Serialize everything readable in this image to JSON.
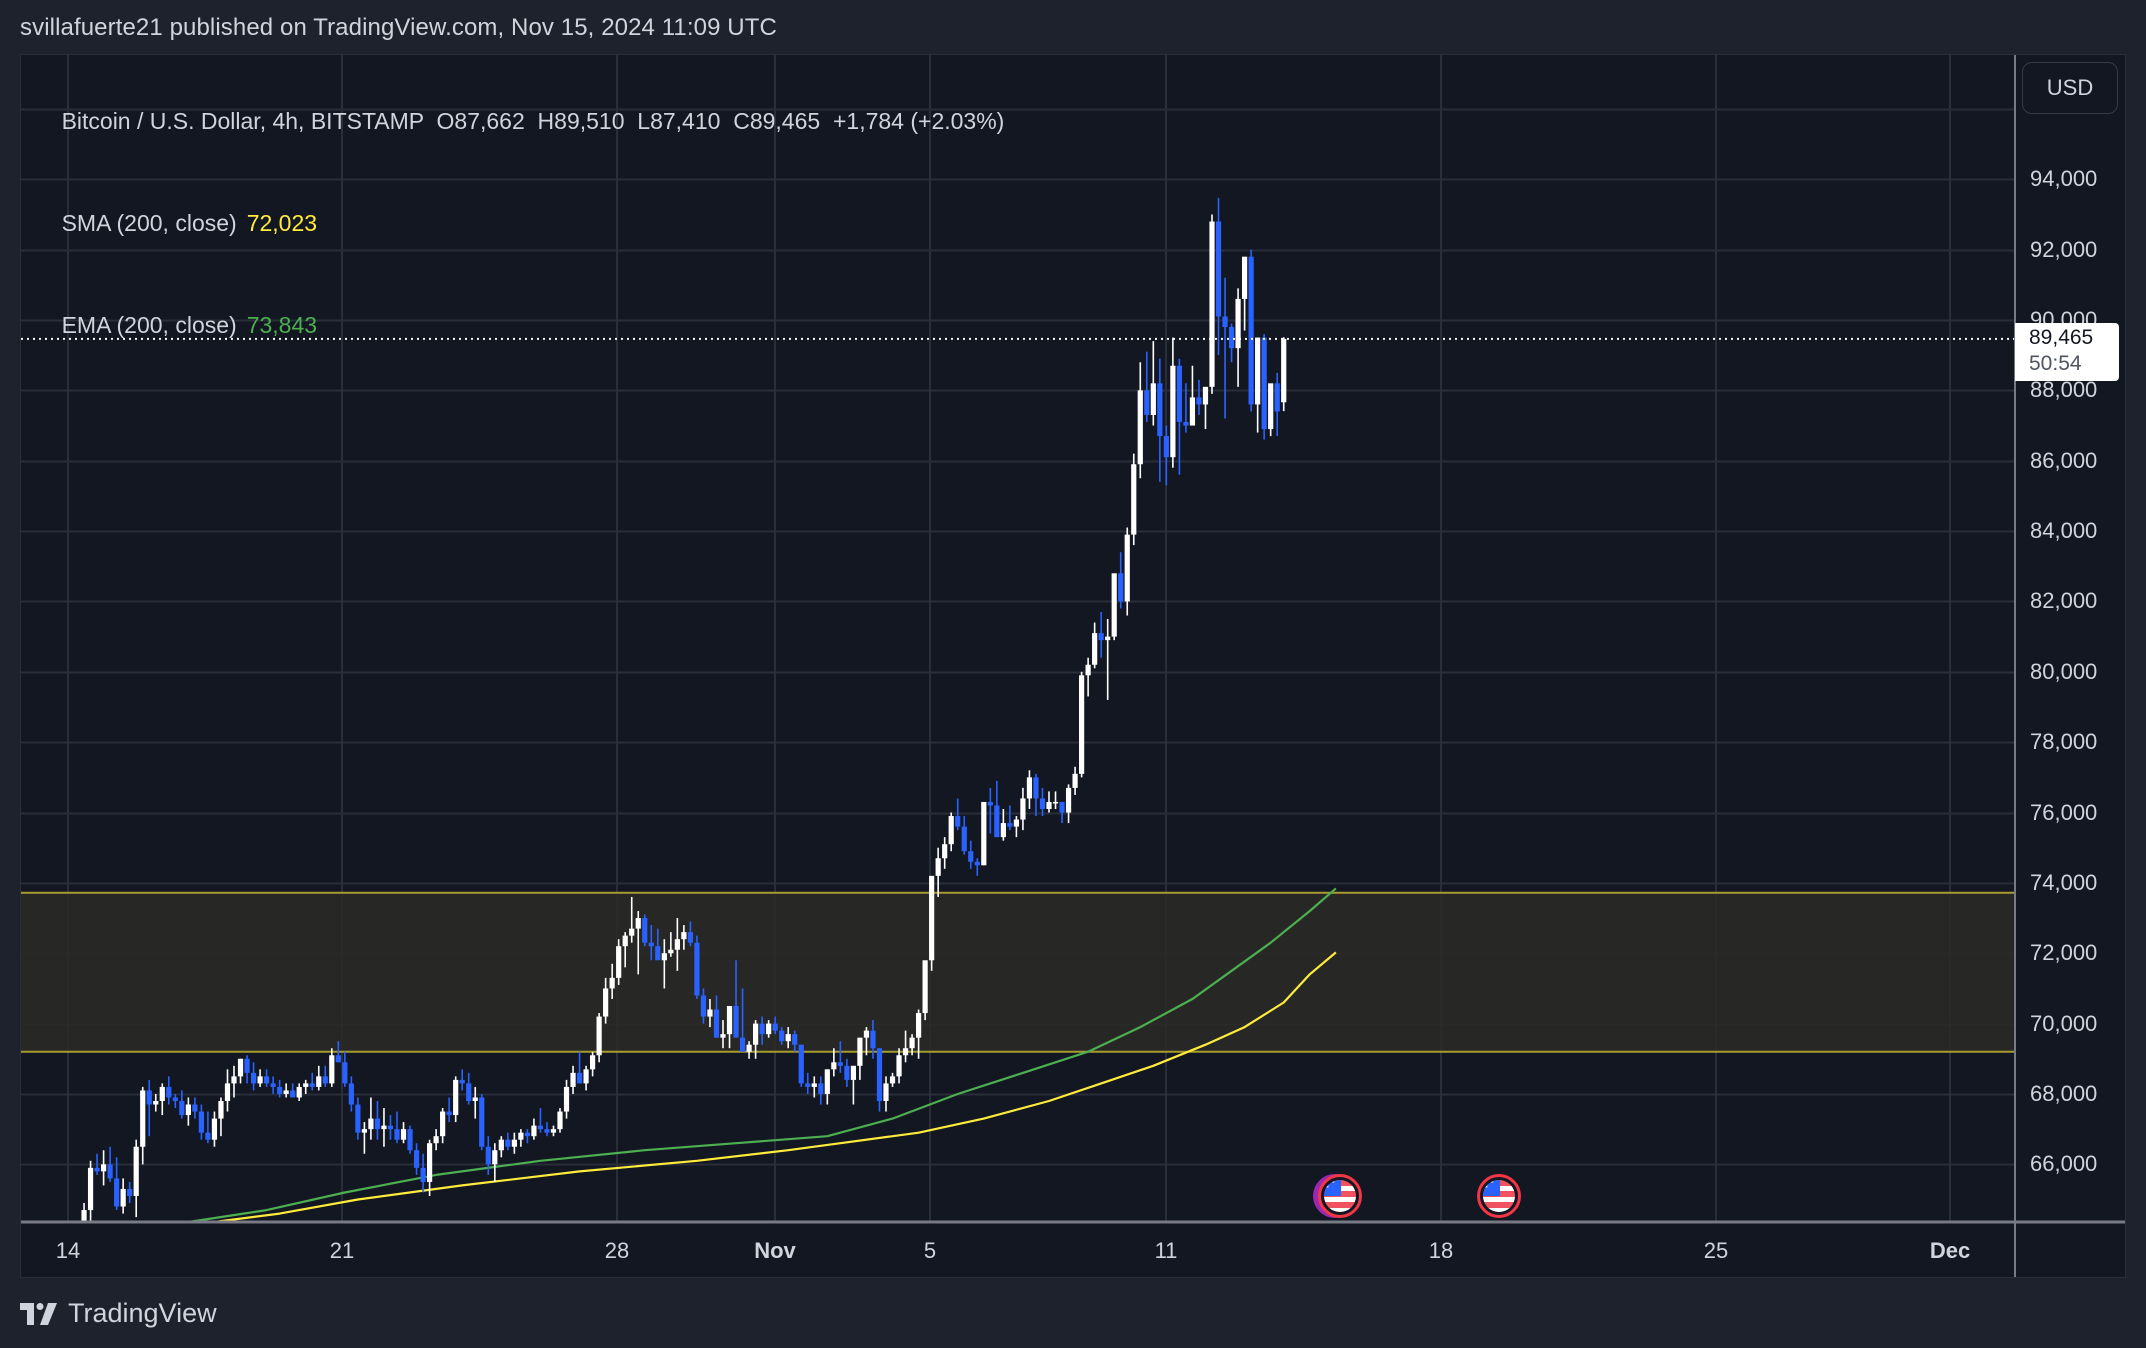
{
  "header": {
    "publisher_line": "svillafuerte21 published on TradingView.com, Nov 15, 2024 11:09 UTC"
  },
  "legend": {
    "symbol": "Bitcoin / U.S. Dollar, 4h, BITSTAMP",
    "open_label": "O87,662",
    "high_label": "H89,510",
    "low_label": "L87,410",
    "close_label": "C89,465",
    "change_label": "+1,784 (+2.03%)",
    "sma_label": "SMA (200, close)",
    "sma_value": "72,023",
    "ema_label": "EMA (200, close)",
    "ema_value": "73,843"
  },
  "price_axis": {
    "currency_button": "USD",
    "labels": [
      "94,000",
      "92,000",
      "90,000",
      "88,000",
      "86,000",
      "84,000",
      "82,000",
      "80,000",
      "78,000",
      "76,000",
      "74,000",
      "72,000",
      "70,000",
      "68,000",
      "66,000"
    ],
    "last_price": "89,465",
    "countdown": "50:54"
  },
  "time_axis": {
    "labels": [
      "14",
      "21",
      "28",
      "Nov",
      "5",
      "11",
      "18",
      "25",
      "Dec"
    ]
  },
  "footer": {
    "brand": "TradingView"
  },
  "colors": {
    "background": "#131722",
    "frame": "#1e222d",
    "grid": "#2a2e39",
    "bull": "#ffffff",
    "bear": "#2962ff",
    "sma": "#ffeb3b",
    "ema": "#4caf50",
    "zone_fill": "#2a2a27",
    "zone_border": "#a89b2e"
  },
  "chart_data": {
    "type": "candlestick",
    "title": "Bitcoin / U.S. Dollar, 4h, BITSTAMP",
    "interval": "4h",
    "xlabel": "",
    "ylabel": "USD",
    "ylim": [
      64230,
      97000
    ],
    "grid": true,
    "x_tick_labels": [
      "14",
      "21",
      "28",
      "Nov",
      "5",
      "11",
      "18",
      "25",
      "Dec"
    ],
    "y_tick_labels": [
      66000,
      68000,
      70000,
      72000,
      74000,
      76000,
      78000,
      80000,
      82000,
      84000,
      86000,
      88000,
      90000,
      92000,
      94000
    ],
    "last_candle": {
      "open": 87662,
      "high": 89510,
      "low": 87410,
      "close": 89465,
      "change": 1784,
      "change_pct": 2.03
    },
    "indicators": [
      {
        "name": "SMA (200, close)",
        "last": 72023,
        "color": "#ffeb3b"
      },
      {
        "name": "EMA (200, close)",
        "last": 73843,
        "color": "#4caf50"
      }
    ],
    "zone": {
      "top": 73720,
      "bottom": 69200,
      "label": "resistance/support band"
    },
    "start": "Oct 14 00:00",
    "candles_ohlc": [
      [
        62800,
        63300,
        62600,
        63200
      ],
      [
        63200,
        64000,
        63100,
        63900
      ],
      [
        63900,
        64900,
        63800,
        64700
      ],
      [
        64700,
        66100,
        64300,
        65900
      ],
      [
        65900,
        66300,
        65700,
        65800
      ],
      [
        65800,
        66400,
        65400,
        66000
      ],
      [
        66000,
        66500,
        65500,
        65600
      ],
      [
        65600,
        66200,
        64700,
        64800
      ],
      [
        64800,
        65600,
        64600,
        65300
      ],
      [
        65300,
        65500,
        64900,
        65100
      ],
      [
        65100,
        66700,
        64500,
        66500
      ],
      [
        66500,
        68200,
        66000,
        68100
      ],
      [
        68100,
        68400,
        66800,
        67700
      ],
      [
        67700,
        68000,
        67500,
        67800
      ],
      [
        67800,
        68300,
        67400,
        68200
      ],
      [
        68200,
        68500,
        67700,
        67900
      ],
      [
        67900,
        68000,
        67600,
        67800
      ],
      [
        67800,
        68100,
        67300,
        67400
      ],
      [
        67400,
        67900,
        67100,
        67700
      ],
      [
        67700,
        67900,
        67300,
        67500
      ],
      [
        67500,
        67700,
        66700,
        66900
      ],
      [
        66900,
        67500,
        66600,
        66700
      ],
      [
        66700,
        67500,
        66500,
        67300
      ],
      [
        67300,
        67900,
        66800,
        67800
      ],
      [
        67800,
        68700,
        67500,
        68300
      ],
      [
        68300,
        68800,
        67900,
        68500
      ],
      [
        68500,
        69000,
        68300,
        69000
      ],
      [
        69000,
        69100,
        68300,
        68600
      ],
      [
        68600,
        68900,
        68100,
        68300
      ],
      [
        68300,
        68700,
        68200,
        68500
      ],
      [
        68500,
        68700,
        68200,
        68300
      ],
      [
        68300,
        68500,
        68000,
        68200
      ],
      [
        68200,
        68400,
        67900,
        68000
      ],
      [
        68000,
        68300,
        67900,
        68100
      ],
      [
        68100,
        68300,
        67900,
        67900
      ],
      [
        67900,
        68300,
        67800,
        68200
      ],
      [
        68200,
        68400,
        68000,
        68300
      ],
      [
        68300,
        68600,
        68100,
        68200
      ],
      [
        68200,
        68800,
        68100,
        68500
      ],
      [
        68500,
        68800,
        68200,
        68300
      ],
      [
        68300,
        69300,
        68200,
        69100
      ],
      [
        69100,
        69500,
        68900,
        68900
      ],
      [
        68900,
        69200,
        68200,
        68300
      ],
      [
        68300,
        68500,
        67500,
        67700
      ],
      [
        67700,
        67900,
        66700,
        66900
      ],
      [
        66900,
        67200,
        66300,
        67000
      ],
      [
        67000,
        67900,
        66700,
        67300
      ],
      [
        67300,
        67800,
        66700,
        67000
      ],
      [
        67000,
        67600,
        66500,
        67100
      ],
      [
        67100,
        67400,
        66700,
        67000
      ],
      [
        67000,
        67500,
        66600,
        66700
      ],
      [
        66700,
        67200,
        66600,
        67000
      ],
      [
        67000,
        67100,
        66300,
        66400
      ],
      [
        66400,
        66600,
        65700,
        65900
      ],
      [
        65900,
        66300,
        65200,
        65500
      ],
      [
        65500,
        66700,
        65100,
        66600
      ],
      [
        66600,
        67000,
        66400,
        66800
      ],
      [
        66800,
        67600,
        66600,
        67500
      ],
      [
        67500,
        67900,
        67200,
        67400
      ],
      [
        67400,
        68500,
        67200,
        68400
      ],
      [
        68400,
        68700,
        68100,
        68300
      ],
      [
        68300,
        68600,
        67700,
        67800
      ],
      [
        67800,
        68200,
        67300,
        67900
      ],
      [
        67900,
        68000,
        66400,
        66500
      ],
      [
        66500,
        66800,
        65700,
        66000
      ],
      [
        66000,
        66600,
        65500,
        66400
      ],
      [
        66400,
        66800,
        66200,
        66700
      ],
      [
        66700,
        66900,
        66400,
        66500
      ],
      [
        66500,
        66900,
        66300,
        66700
      ],
      [
        66700,
        67000,
        66500,
        66900
      ],
      [
        66900,
        67000,
        66600,
        66800
      ],
      [
        66800,
        67300,
        66700,
        67100
      ],
      [
        67100,
        67600,
        66900,
        67000
      ],
      [
        67000,
        67200,
        66800,
        66900
      ],
      [
        66900,
        67100,
        66800,
        67000
      ],
      [
        67000,
        67600,
        66900,
        67500
      ],
      [
        67500,
        68400,
        67300,
        68200
      ],
      [
        68200,
        68800,
        68000,
        68600
      ],
      [
        68600,
        69200,
        68400,
        68300
      ],
      [
        68300,
        68800,
        68100,
        68700
      ],
      [
        68700,
        69200,
        68500,
        69100
      ],
      [
        69100,
        70300,
        68900,
        70200
      ],
      [
        70200,
        71300,
        70000,
        71000
      ],
      [
        71000,
        71700,
        70700,
        71300
      ],
      [
        71300,
        72400,
        71100,
        72200
      ],
      [
        72200,
        72600,
        71600,
        72500
      ],
      [
        72500,
        73600,
        72300,
        72700
      ],
      [
        72700,
        73200,
        71400,
        73000
      ],
      [
        73000,
        73100,
        72200,
        72300
      ],
      [
        72300,
        72800,
        71800,
        72200
      ],
      [
        72200,
        72700,
        71900,
        71800
      ],
      [
        71800,
        72400,
        71000,
        72000
      ],
      [
        72000,
        72600,
        71900,
        72100
      ],
      [
        72100,
        73000,
        71500,
        72400
      ],
      [
        72400,
        72800,
        72100,
        72600
      ],
      [
        72600,
        72900,
        72200,
        72300
      ],
      [
        72300,
        72500,
        70700,
        70800
      ],
      [
        70800,
        71000,
        70000,
        70200
      ],
      [
        70200,
        70700,
        69900,
        70400
      ],
      [
        70400,
        70800,
        69600,
        69600
      ],
      [
        69600,
        70100,
        69300,
        69700
      ],
      [
        69700,
        70300,
        69300,
        70500
      ],
      [
        70500,
        71800,
        69700,
        69600
      ],
      [
        69600,
        71000,
        69300,
        69200
      ],
      [
        69200,
        69500,
        69000,
        69400
      ],
      [
        69400,
        70100,
        69000,
        70000
      ],
      [
        70000,
        70200,
        69400,
        69700
      ],
      [
        69700,
        70100,
        69600,
        70000
      ],
      [
        70000,
        70200,
        69700,
        69800
      ],
      [
        69800,
        69900,
        69400,
        69500
      ],
      [
        69500,
        69900,
        69300,
        69700
      ],
      [
        69700,
        69800,
        69200,
        69400
      ],
      [
        69400,
        69400,
        68200,
        68300
      ],
      [
        68300,
        68600,
        68000,
        68200
      ],
      [
        68200,
        68500,
        67900,
        68300
      ],
      [
        68300,
        68500,
        67700,
        68000
      ],
      [
        68000,
        68700,
        67700,
        68700
      ],
      [
        68700,
        69300,
        68500,
        68900
      ],
      [
        68900,
        69500,
        68600,
        68800
      ],
      [
        68800,
        69000,
        68200,
        68400
      ],
      [
        68400,
        68800,
        67700,
        68800
      ],
      [
        68800,
        69500,
        68400,
        69600
      ],
      [
        69600,
        69900,
        69100,
        69800
      ],
      [
        69800,
        70100,
        69000,
        69300
      ],
      [
        69300,
        69300,
        67500,
        67800
      ],
      [
        67800,
        68500,
        67500,
        68300
      ],
      [
        68300,
        68600,
        68200,
        68500
      ],
      [
        68500,
        69300,
        68300,
        69100
      ],
      [
        69100,
        69800,
        68900,
        69300
      ],
      [
        69300,
        69700,
        69100,
        69600
      ],
      [
        69600,
        70400,
        69000,
        70300
      ],
      [
        70300,
        71600,
        70100,
        71800
      ],
      [
        71800,
        73700,
        71500,
        74200
      ],
      [
        74200,
        75000,
        73600,
        74700
      ],
      [
        74700,
        75300,
        74400,
        75100
      ],
      [
        75100,
        76000,
        74900,
        75900
      ],
      [
        75900,
        76400,
        75500,
        75600
      ],
      [
        75600,
        75900,
        74800,
        74900
      ],
      [
        74900,
        75200,
        74400,
        74600
      ],
      [
        74600,
        74700,
        74200,
        74500
      ],
      [
        74500,
        76300,
        74500,
        76300
      ],
      [
        76300,
        76700,
        75400,
        76200
      ],
      [
        76200,
        76900,
        75300,
        75300
      ],
      [
        75300,
        76100,
        75200,
        75700
      ],
      [
        75700,
        76200,
        75500,
        75600
      ],
      [
        75600,
        75900,
        75300,
        75800
      ],
      [
        75800,
        76700,
        75500,
        76400
      ],
      [
        76400,
        77200,
        76100,
        77000
      ],
      [
        77000,
        77100,
        75900,
        76400
      ],
      [
        76400,
        76700,
        75900,
        76100
      ],
      [
        76100,
        76600,
        76000,
        76300
      ],
      [
        76300,
        76600,
        76100,
        76300
      ],
      [
        76300,
        76300,
        75700,
        76000
      ],
      [
        76000,
        76800,
        75700,
        76700
      ],
      [
        76700,
        77300,
        76500,
        77100
      ],
      [
        77100,
        80000,
        77000,
        79900
      ],
      [
        79900,
        80400,
        79300,
        80200
      ],
      [
        80200,
        81400,
        80100,
        81100
      ],
      [
        81100,
        81700,
        80400,
        80900
      ],
      [
        80900,
        81500,
        79200,
        81000
      ],
      [
        81000,
        82600,
        80900,
        82800
      ],
      [
        82800,
        83400,
        81800,
        82000
      ],
      [
        82000,
        84100,
        81600,
        83900
      ],
      [
        83900,
        86200,
        83600,
        85900
      ],
      [
        85900,
        88800,
        85500,
        88000
      ],
      [
        88000,
        89100,
        87100,
        87300
      ],
      [
        87300,
        89400,
        87000,
        88200
      ],
      [
        88200,
        88900,
        85400,
        86700
      ],
      [
        86700,
        87000,
        85300,
        86100
      ],
      [
        86100,
        89500,
        85800,
        88700
      ],
      [
        88700,
        88900,
        85600,
        87100
      ],
      [
        87100,
        88200,
        86800,
        87000
      ],
      [
        87000,
        88700,
        87100,
        87800
      ],
      [
        87800,
        88300,
        87300,
        87600
      ],
      [
        87600,
        88000,
        86900,
        88100
      ],
      [
        88100,
        93000,
        87900,
        92800
      ],
      [
        92800,
        93470,
        89000,
        90100
      ],
      [
        90100,
        91200,
        87200,
        89800
      ],
      [
        89800,
        89900,
        88800,
        89200
      ],
      [
        89200,
        90900,
        88100,
        90600
      ],
      [
        90600,
        91600,
        89700,
        91800
      ],
      [
        91800,
        92000,
        87400,
        87600
      ],
      [
        87600,
        89500,
        86800,
        89500
      ],
      [
        89500,
        89600,
        86600,
        86900
      ],
      [
        86900,
        88000,
        86700,
        88200
      ],
      [
        88200,
        88500,
        86700,
        87400
      ],
      [
        87662,
        89510,
        87410,
        89465
      ]
    ],
    "sma200_path": [
      [
        22,
        64200
      ],
      [
        32,
        64600
      ],
      [
        44,
        65000
      ],
      [
        60,
        65400
      ],
      [
        78,
        65800
      ],
      [
        96,
        66100
      ],
      [
        110,
        66400
      ],
      [
        118,
        66600
      ],
      [
        130,
        66900
      ],
      [
        140,
        67300
      ],
      [
        150,
        67800
      ],
      [
        158,
        68300
      ],
      [
        166,
        68800
      ],
      [
        174,
        69400
      ],
      [
        180,
        69900
      ],
      [
        186,
        70600
      ],
      [
        190,
        71400
      ],
      [
        194,
        72023
      ]
    ],
    "ema200_path": [
      [
        18,
        64200
      ],
      [
        30,
        64700
      ],
      [
        42,
        65200
      ],
      [
        56,
        65700
      ],
      [
        72,
        66100
      ],
      [
        88,
        66400
      ],
      [
        102,
        66600
      ],
      [
        116,
        66800
      ],
      [
        126,
        67300
      ],
      [
        136,
        68000
      ],
      [
        146,
        68600
      ],
      [
        156,
        69200
      ],
      [
        164,
        69900
      ],
      [
        172,
        70700
      ],
      [
        178,
        71500
      ],
      [
        184,
        72300
      ],
      [
        190,
        73200
      ],
      [
        194,
        73843
      ]
    ]
  }
}
